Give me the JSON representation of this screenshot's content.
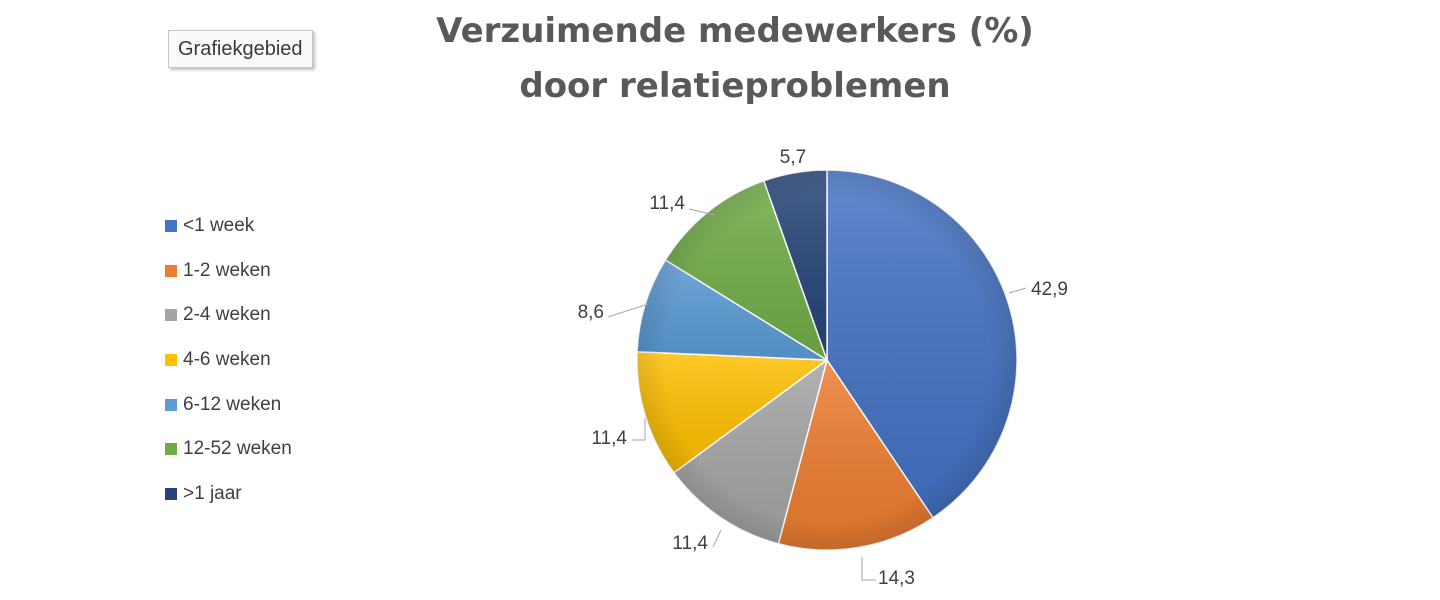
{
  "tooltip": {
    "label": "Grafiekgebied"
  },
  "chart_data": {
    "type": "pie",
    "title": "Verzuimende medewerkers (%) door relatieproblemen",
    "categories": [
      "<1 week",
      "1-2 weken",
      "2-4 weken",
      "4-6 weken",
      "6-12 weken",
      "12-52 weken",
      ">1 jaar"
    ],
    "values": [
      42.9,
      14.3,
      11.4,
      11.4,
      8.6,
      11.4,
      5.7
    ],
    "data_labels": [
      "42,9",
      "14,3",
      "11,4",
      "11,4",
      "8,6",
      "11,4",
      "5,7"
    ],
    "colors": [
      "#4472c4",
      "#ed7d31",
      "#a5a5a5",
      "#ffc000",
      "#5b9bd5",
      "#70ad47",
      "#264478"
    ],
    "legend_position": "left",
    "start_angle": "12 o'clock",
    "direction": "clockwise"
  }
}
